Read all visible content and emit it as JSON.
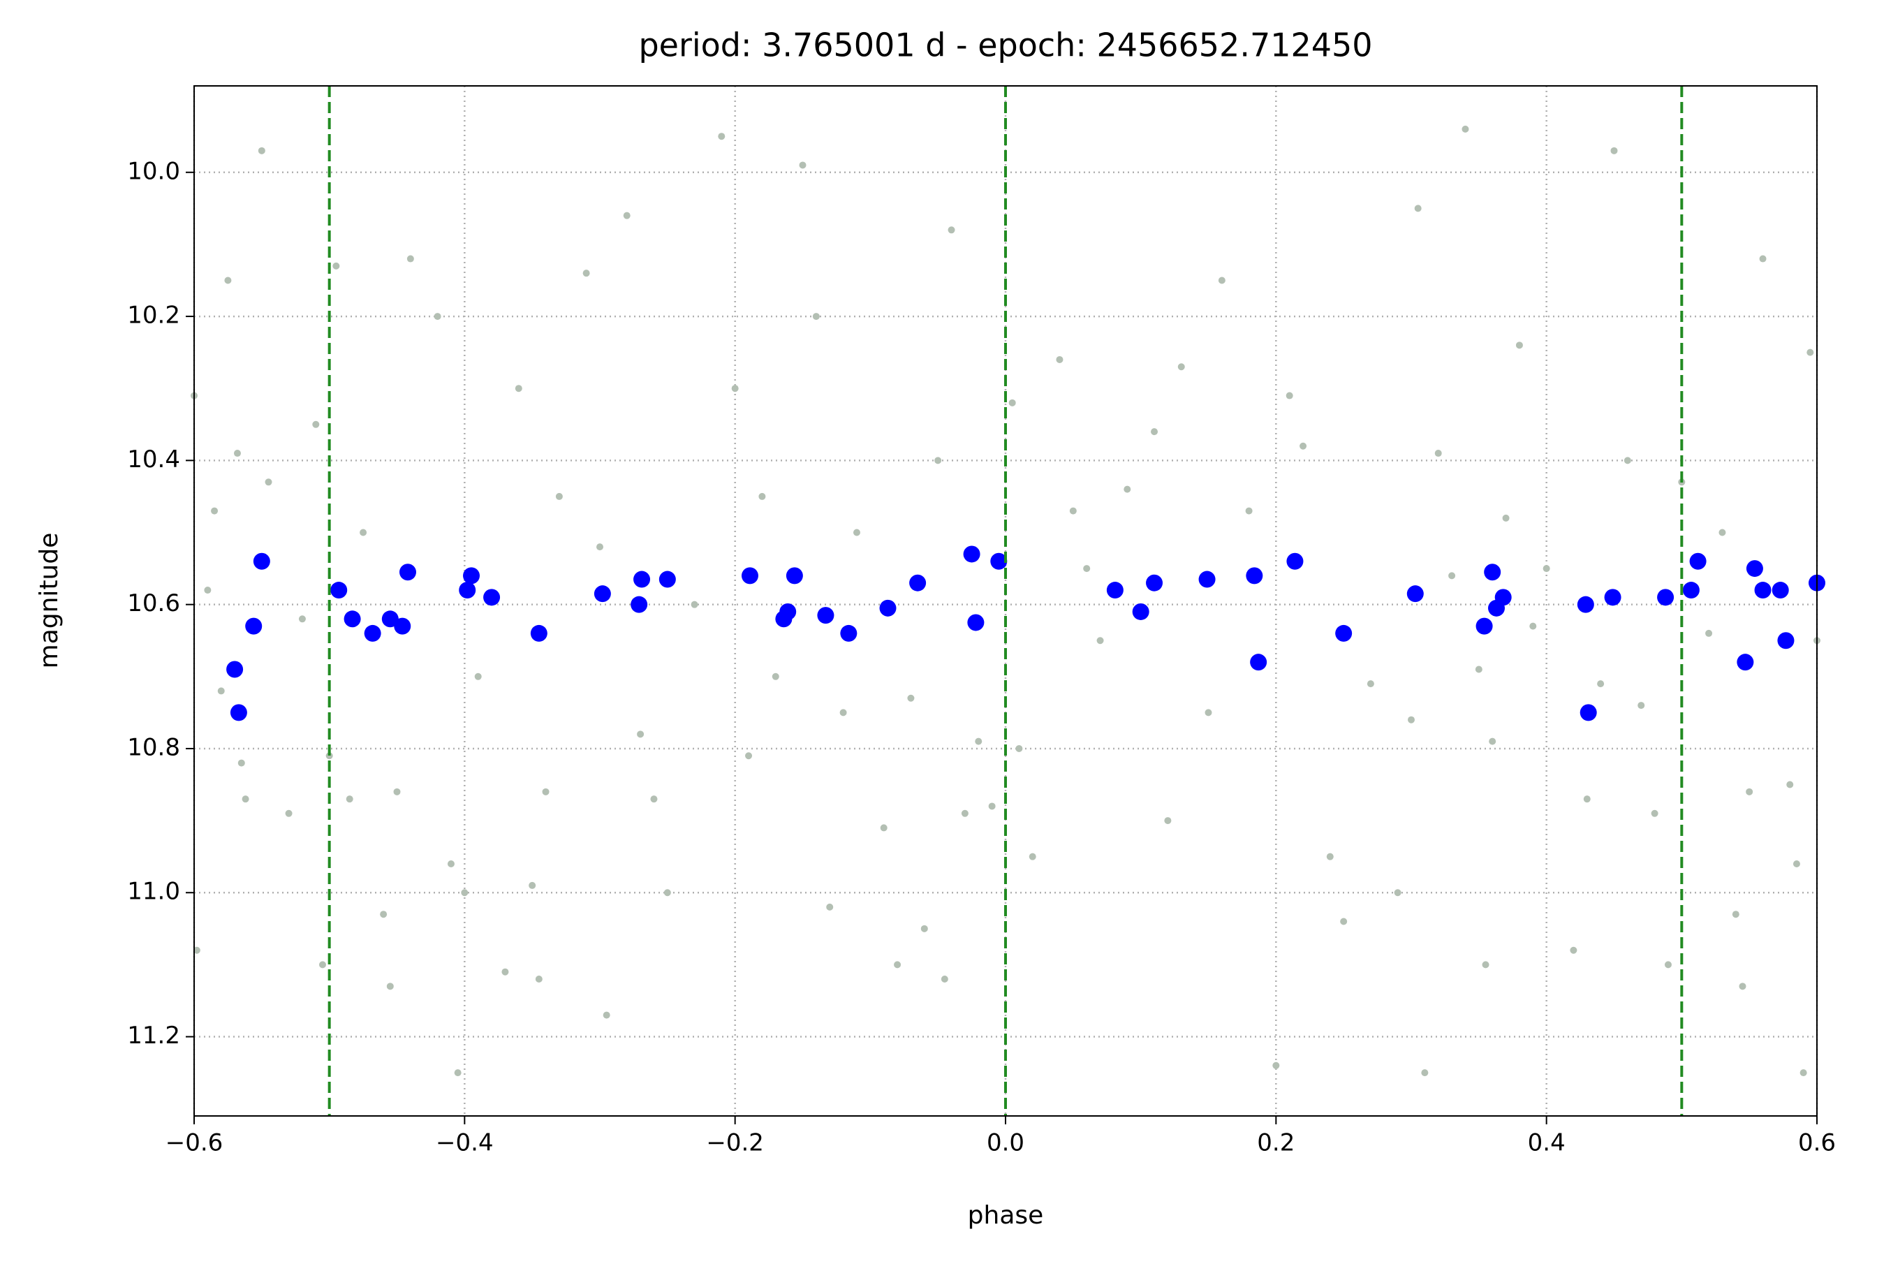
{
  "chart_data": {
    "type": "scatter",
    "title": "period: 3.765001 d - epoch: 2456652.712450",
    "x_label": "phase",
    "y_label": "magnitude",
    "xlim": [
      -0.6,
      0.6
    ],
    "xticks": [
      {
        "value": -0.6,
        "label": "−0.6"
      },
      {
        "value": -0.4,
        "label": "−0.4"
      },
      {
        "value": -0.2,
        "label": "−0.2"
      },
      {
        "value": 0,
        "label": "0.0"
      },
      0.2,
      0.4,
      0.6
    ],
    "ylim": [
      11.31,
      9.88
    ],
    "yticks": [
      {
        "value": 10,
        "label": "10.0"
      },
      10.2,
      10.4,
      10.6,
      10.8,
      {
        "value": 11,
        "label": "11.0"
      },
      11.2
    ],
    "grid": true,
    "vlines": [
      -0.5,
      0,
      0.5
    ],
    "vline_color": "#228b22",
    "series": [
      {
        "color": "#b3bfb3",
        "size": 5,
        "x": [
          -0.6,
          -0.598,
          -0.59,
          -0.585,
          -0.58,
          -0.575,
          -0.568,
          -0.565,
          -0.562,
          -0.55,
          -0.545,
          -0.53,
          -0.52,
          -0.51,
          -0.5,
          -0.505,
          -0.495,
          -0.485,
          -0.475,
          -0.46,
          -0.455,
          -0.45,
          -0.44,
          -0.42,
          -0.41,
          -0.405,
          -0.4,
          -0.39,
          -0.37,
          -0.36,
          -0.35,
          -0.345,
          -0.34,
          -0.33,
          -0.31,
          -0.3,
          -0.295,
          -0.28,
          -0.27,
          -0.26,
          -0.25,
          -0.23,
          -0.21,
          -0.2,
          -0.19,
          -0.18,
          -0.17,
          -0.15,
          -0.14,
          -0.13,
          -0.12,
          -0.11,
          -0.09,
          -0.08,
          -0.07,
          -0.06,
          -0.05,
          -0.045,
          -0.04,
          -0.03,
          -0.02,
          -0.01,
          0.005,
          0.01,
          0.02,
          0.04,
          0.05,
          0.06,
          0.07,
          0.09,
          0.11,
          0.12,
          0.13,
          0.15,
          0.16,
          0.18,
          0.2,
          0.21,
          0.22,
          0.24,
          0.25,
          0.27,
          0.29,
          0.3,
          0.305,
          0.31,
          0.32,
          0.33,
          0.34,
          0.35,
          0.355,
          0.36,
          0.37,
          0.38,
          0.39,
          0.4,
          0.42,
          0.43,
          0.44,
          0.45,
          0.46,
          0.47,
          0.48,
          0.49,
          0.5,
          0.52,
          0.53,
          0.54,
          0.545,
          0.55,
          0.56,
          0.57,
          0.58,
          0.585,
          0.59,
          0.595,
          0.6
        ],
        "values": [
          10.31,
          11.08,
          10.58,
          10.47,
          10.72,
          10.15,
          10.39,
          10.82,
          10.87,
          9.97,
          10.43,
          10.89,
          10.62,
          10.35,
          10.81,
          11.1,
          10.13,
          10.87,
          10.5,
          11.03,
          11.13,
          10.86,
          10.12,
          10.2,
          10.96,
          11.25,
          11.0,
          10.7,
          11.11,
          10.3,
          10.99,
          11.12,
          10.86,
          10.45,
          10.14,
          10.52,
          11.17,
          10.06,
          10.78,
          10.87,
          11.0,
          10.6,
          9.95,
          10.3,
          10.81,
          10.45,
          10.7,
          9.99,
          10.2,
          11.02,
          10.75,
          10.5,
          10.91,
          11.1,
          10.73,
          11.05,
          10.4,
          11.12,
          10.08,
          10.89,
          10.79,
          10.88,
          10.32,
          10.8,
          10.95,
          10.26,
          10.47,
          10.55,
          10.65,
          10.44,
          10.36,
          10.9,
          10.27,
          10.75,
          10.15,
          10.47,
          11.24,
          10.31,
          10.38,
          10.95,
          11.04,
          10.71,
          11.0,
          10.76,
          10.05,
          11.25,
          10.39,
          10.56,
          9.94,
          10.69,
          11.1,
          10.79,
          10.48,
          10.24,
          10.63,
          10.55,
          11.08,
          10.87,
          10.71,
          9.97,
          10.4,
          10.74,
          10.89,
          11.1,
          10.43,
          10.64,
          10.5,
          11.03,
          11.13,
          10.86,
          10.12,
          10.58,
          10.85,
          10.96,
          11.25,
          10.25,
          10.65
        ]
      },
      {
        "color": "#0000ff",
        "size": 12,
        "x": [
          -0.57,
          -0.567,
          -0.556,
          -0.55,
          -0.493,
          -0.483,
          -0.468,
          -0.455,
          -0.446,
          -0.442,
          -0.398,
          -0.395,
          -0.38,
          -0.345,
          -0.298,
          -0.271,
          -0.269,
          -0.25,
          -0.189,
          -0.164,
          -0.161,
          -0.156,
          -0.133,
          -0.116,
          -0.087,
          -0.065,
          -0.025,
          -0.022,
          -0.005,
          0.081,
          0.1,
          0.11,
          0.149,
          0.184,
          0.187,
          0.214,
          0.25,
          0.303,
          0.354,
          0.36,
          0.363,
          0.368,
          0.429,
          0.431,
          0.449,
          0.488,
          0.507,
          0.512,
          0.547,
          0.554,
          0.56,
          0.573,
          0.577,
          0.6
        ],
        "values": [
          10.69,
          10.75,
          10.63,
          10.54,
          10.58,
          10.62,
          10.64,
          10.62,
          10.63,
          10.555,
          10.58,
          10.56,
          10.59,
          10.64,
          10.585,
          10.6,
          10.565,
          10.565,
          10.56,
          10.62,
          10.61,
          10.56,
          10.615,
          10.64,
          10.605,
          10.57,
          10.53,
          10.625,
          10.54,
          10.58,
          10.61,
          10.57,
          10.565,
          10.56,
          10.68,
          10.54,
          10.64,
          10.585,
          10.63,
          10.555,
          10.605,
          10.59,
          10.6,
          10.75,
          10.59,
          10.59,
          10.58,
          10.54,
          10.68,
          10.55,
          10.58,
          10.58,
          10.65,
          10.57
        ]
      }
    ]
  }
}
